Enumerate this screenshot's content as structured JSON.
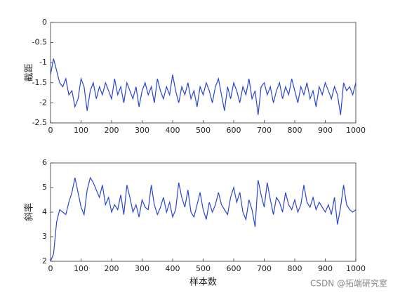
{
  "chart_data": [
    {
      "type": "line",
      "ylabel": "截距",
      "color": "#2a45d4",
      "x": [
        0,
        10,
        20,
        30,
        40,
        50,
        60,
        70,
        80,
        90,
        100,
        110,
        120,
        130,
        140,
        150,
        160,
        170,
        180,
        190,
        200,
        210,
        220,
        230,
        240,
        250,
        260,
        270,
        280,
        290,
        300,
        310,
        320,
        330,
        340,
        350,
        360,
        370,
        380,
        390,
        400,
        410,
        420,
        430,
        440,
        450,
        460,
        470,
        480,
        490,
        500,
        510,
        520,
        530,
        540,
        550,
        560,
        570,
        580,
        590,
        600,
        610,
        620,
        630,
        640,
        650,
        660,
        670,
        680,
        690,
        700,
        710,
        720,
        730,
        740,
        750,
        760,
        770,
        780,
        790,
        800,
        810,
        820,
        830,
        840,
        850,
        860,
        870,
        880,
        890,
        900,
        910,
        920,
        930,
        940,
        950,
        960,
        970,
        980,
        990,
        1000
      ],
      "values": [
        -1.3,
        -0.9,
        -1.2,
        -1.5,
        -1.6,
        -1.4,
        -1.8,
        -1.7,
        -2.1,
        -1.9,
        -1.4,
        -1.6,
        -2.2,
        -1.7,
        -1.5,
        -1.9,
        -1.6,
        -1.8,
        -1.5,
        -1.7,
        -1.9,
        -1.4,
        -1.8,
        -1.6,
        -2.0,
        -1.5,
        -1.7,
        -1.9,
        -1.6,
        -2.1,
        -1.7,
        -1.5,
        -1.8,
        -1.6,
        -2.0,
        -1.4,
        -1.7,
        -1.9,
        -1.6,
        -1.8,
        -1.3,
        -1.7,
        -2.0,
        -1.6,
        -1.8,
        -1.5,
        -1.9,
        -1.7,
        -2.1,
        -1.6,
        -1.8,
        -1.5,
        -1.7,
        -2.0,
        -1.6,
        -1.4,
        -1.8,
        -2.2,
        -1.6,
        -1.9,
        -1.5,
        -1.7,
        -2.0,
        -1.6,
        -1.8,
        -1.4,
        -1.9,
        -1.7,
        -2.3,
        -1.6,
        -1.5,
        -1.8,
        -1.6,
        -2.0,
        -1.7,
        -1.5,
        -1.9,
        -1.6,
        -1.8,
        -1.4,
        -1.7,
        -2.0,
        -1.6,
        -1.8,
        -1.5,
        -1.9,
        -1.7,
        -2.1,
        -1.6,
        -1.8,
        -1.5,
        -1.7,
        -1.9,
        -1.6,
        -1.8,
        -2.3,
        -1.5,
        -1.7,
        -1.6,
        -1.8,
        -1.5
      ],
      "xlim": [
        0,
        1000
      ],
      "xticks": [
        0,
        100,
        200,
        300,
        400,
        500,
        600,
        700,
        800,
        900,
        1000
      ],
      "ylim": [
        -2.5,
        0
      ],
      "yticks": [
        -2.5,
        -2,
        -1.5,
        -1,
        -0.5,
        0
      ]
    },
    {
      "type": "line",
      "ylabel": "斜率",
      "xlabel": "样本数",
      "color": "#2a45d4",
      "x": [
        0,
        10,
        20,
        30,
        40,
        50,
        60,
        70,
        80,
        90,
        100,
        110,
        120,
        130,
        140,
        150,
        160,
        170,
        180,
        190,
        200,
        210,
        220,
        230,
        240,
        250,
        260,
        270,
        280,
        290,
        300,
        310,
        320,
        330,
        340,
        350,
        360,
        370,
        380,
        390,
        400,
        410,
        420,
        430,
        440,
        450,
        460,
        470,
        480,
        490,
        500,
        510,
        520,
        530,
        540,
        550,
        560,
        570,
        580,
        590,
        600,
        610,
        620,
        630,
        640,
        650,
        660,
        670,
        680,
        690,
        700,
        710,
        720,
        730,
        740,
        750,
        760,
        770,
        780,
        790,
        800,
        810,
        820,
        830,
        840,
        850,
        860,
        870,
        880,
        890,
        900,
        910,
        920,
        930,
        940,
        950,
        960,
        970,
        980,
        990,
        1000
      ],
      "values": [
        2.0,
        2.3,
        3.6,
        4.1,
        4.0,
        3.9,
        4.4,
        4.8,
        5.4,
        4.8,
        4.2,
        3.9,
        4.9,
        5.4,
        5.2,
        4.9,
        4.6,
        5.1,
        4.3,
        4.6,
        4.0,
        4.3,
        4.1,
        4.7,
        3.9,
        5.1,
        4.6,
        4.0,
        4.3,
        3.8,
        4.5,
        4.2,
        4.1,
        5.1,
        4.3,
        3.9,
        4.2,
        4.6,
        4.0,
        4.4,
        3.8,
        4.1,
        5.2,
        4.6,
        4.2,
        4.9,
        4.0,
        3.8,
        4.3,
        4.8,
        4.1,
        3.7,
        4.4,
        4.0,
        4.3,
        4.8,
        4.3,
        4.1,
        3.9,
        4.6,
        5.0,
        4.4,
        4.8,
        4.0,
        3.7,
        4.5,
        4.1,
        3.4,
        5.3,
        4.7,
        4.2,
        5.2,
        4.5,
        3.9,
        4.6,
        4.4,
        4.0,
        4.8,
        4.3,
        4.1,
        4.5,
        4.0,
        4.3,
        5.1,
        4.4,
        4.2,
        4.6,
        4.1,
        4.4,
        4.2,
        4.0,
        4.3,
        3.9,
        4.6,
        3.5,
        4.2,
        5.1,
        4.3,
        4.1,
        4.0,
        4.1
      ],
      "xlim": [
        0,
        1000
      ],
      "xticks": [
        0,
        100,
        200,
        300,
        400,
        500,
        600,
        700,
        800,
        900,
        1000
      ],
      "ylim": [
        2,
        6
      ],
      "yticks": [
        2,
        3,
        4,
        5,
        6
      ]
    }
  ],
  "watermark": "CSDN @拓端研究室"
}
